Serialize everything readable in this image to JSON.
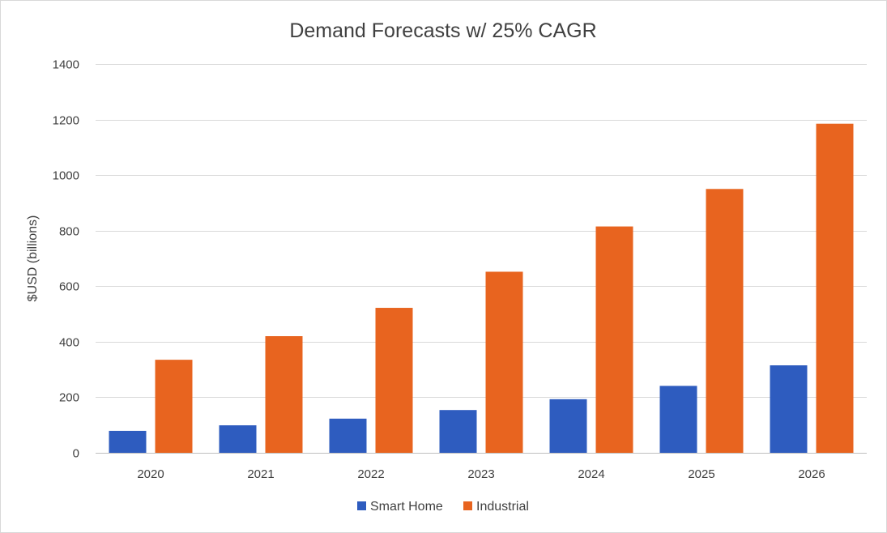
{
  "chart_data": {
    "type": "bar",
    "title": "Demand Forecasts w/ 25% CAGR",
    "xlabel": "",
    "ylabel": "$USD (billions)",
    "ylim": [
      0,
      1400
    ],
    "yticks": [
      0,
      200,
      400,
      600,
      800,
      1000,
      1200,
      1400
    ],
    "grid": true,
    "legend": "bottom",
    "categories": [
      "2020",
      "2021",
      "2022",
      "2023",
      "2024",
      "2025",
      "2026"
    ],
    "series": [
      {
        "name": "Smart Home",
        "color": "#2e5cbf",
        "values": [
          79,
          99,
          123,
          154,
          193,
          241,
          315
        ]
      },
      {
        "name": "Industrial",
        "color": "#e8641f",
        "values": [
          335,
          420,
          522,
          652,
          815,
          950,
          1185
        ]
      }
    ]
  }
}
